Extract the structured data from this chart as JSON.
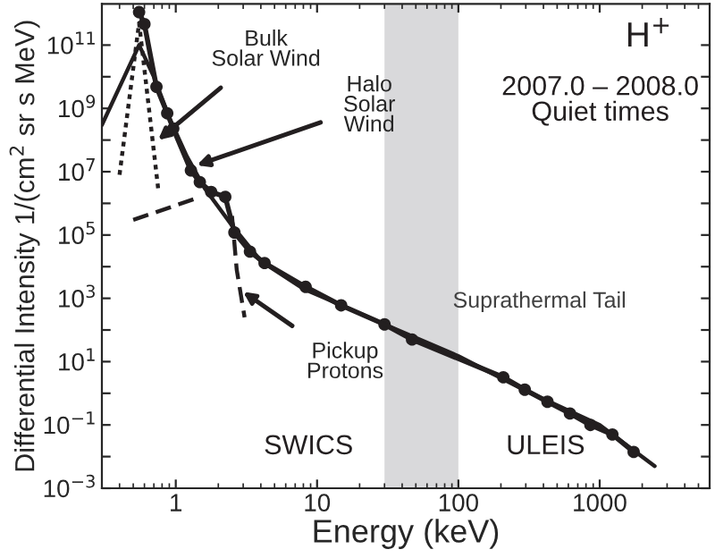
{
  "chart_data": {
    "type": "line",
    "xlabel": "Energy (keV)",
    "ylabel": "Differential Intensity 1/(cm$^{2}$ sr s MeV)",
    "log": "xy",
    "xlim": [
      0.3,
      6000
    ],
    "ylim": [
      0.001,
      2000000000000.0
    ],
    "xticks": [
      1,
      10,
      100,
      1000
    ],
    "yticks": [
      {
        "value": 0.001,
        "label": "10$^{−3}$"
      },
      {
        "value": 0.01,
        "label": null
      },
      {
        "value": 0.1,
        "label": "10$^{−1}$"
      },
      {
        "value": 1,
        "label": null
      },
      {
        "value": 10,
        "label": "10$^{1}$"
      },
      {
        "value": 100,
        "label": null
      },
      {
        "value": 1000,
        "label": "10$^{3}$"
      },
      {
        "value": 10000,
        "label": null
      },
      {
        "value": 100000,
        "label": "10$^{5}$"
      },
      {
        "value": 1000000,
        "label": null
      },
      {
        "value": 10000000,
        "label": "10$^{7}$"
      },
      {
        "value": 100000000,
        "label": null
      },
      {
        "value": 1000000000,
        "label": "10$^{9}$"
      },
      {
        "value": 10000000000,
        "label": null
      },
      {
        "value": 100000000000,
        "label": "10$^{11}$"
      }
    ],
    "grid": false,
    "legend": false,
    "series": [
      {
        "color": "#231f20",
        "marker": "circle",
        "line_style": "solid",
        "x": [
          0.55,
          0.6,
          0.73,
          0.87,
          0.96,
          1.28,
          1.48,
          1.78,
          2.24,
          2.6,
          3.35,
          4.25,
          8.3,
          14.8,
          30,
          47,
          208,
          295,
          427,
          616,
          860,
          1230,
          1740
        ],
        "values": [
          1100000000000.0,
          460000000000.0,
          4800000000.0,
          700000000.0,
          230000000.0,
          11000000.0,
          4700000.0,
          2300000.0,
          1600000.0,
          120000.0,
          30000.0,
          13000.0,
          2300.0,
          600.0,
          150.0,
          50,
          3.2,
          1.3,
          0.54,
          0.23,
          0.1,
          0.05,
          0.014
        ]
      },
      {
        "color": "#231f20",
        "marker": "none",
        "line_style": "solid",
        "x": [
          0.3,
          0.55,
          0.7,
          0.9,
          1.2,
          1.6,
          2.5,
          4,
          8,
          15,
          30,
          100,
          300,
          1000,
          2450
        ],
        "values": [
          300000000.0,
          100000000000.0,
          10000000000.0,
          500000000.0,
          30000000.0,
          3000000.0,
          200000.0,
          15000.0,
          2000.0,
          600.0,
          150.0,
          15,
          1.2,
          0.1,
          0.005
        ]
      },
      {
        "color": "#231f20",
        "marker": "none",
        "line_style": "dotted",
        "x": [
          0.4,
          0.55,
          0.75
        ],
        "values": [
          8000000.0,
          500000000000.0,
          3000000.0
        ]
      },
      {
        "color": "#231f20",
        "marker": "none",
        "line_style": "dashed",
        "x": [
          0.5,
          1.5
        ],
        "values": [
          300000.0,
          1600000.0
        ]
      },
      {
        "color": "#231f20",
        "marker": "none",
        "line_style": "dashed",
        "x": [
          2.5,
          2.7,
          3.07
        ],
        "values": [
          400000.0,
          8000.0,
          250
        ]
      }
    ],
    "bands": [
      {
        "axis": "x",
        "from": 30,
        "to": 100,
        "color": "#d9d9db"
      }
    ],
    "annotations": [
      {
        "text": "Bulk\nSolar Wind",
        "x": 0.75,
        "y": 100000000.0
      },
      {
        "text": "Halo\nSolar\nWind",
        "x": 1.41,
        "y": 16000000.0
      },
      {
        "text": "Pickup\nProtons",
        "x": 3.0,
        "y": 1600.0
      },
      "Suprathermal Tail",
      "SWICS",
      "ULEIS",
      "2007.0 – 2008.0\nQuiet times",
      "H$^{+}$"
    ]
  }
}
